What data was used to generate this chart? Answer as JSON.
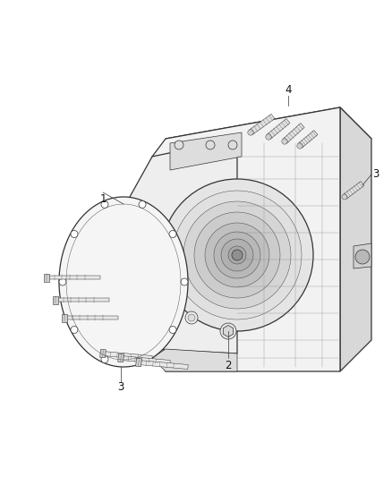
{
  "background_color": "#ffffff",
  "figure_width": 4.38,
  "figure_height": 5.33,
  "dpi": 100,
  "line_color": "#333333",
  "label_color": "#111111",
  "line_color_light": "#888888",
  "line_color_med": "#555555"
}
